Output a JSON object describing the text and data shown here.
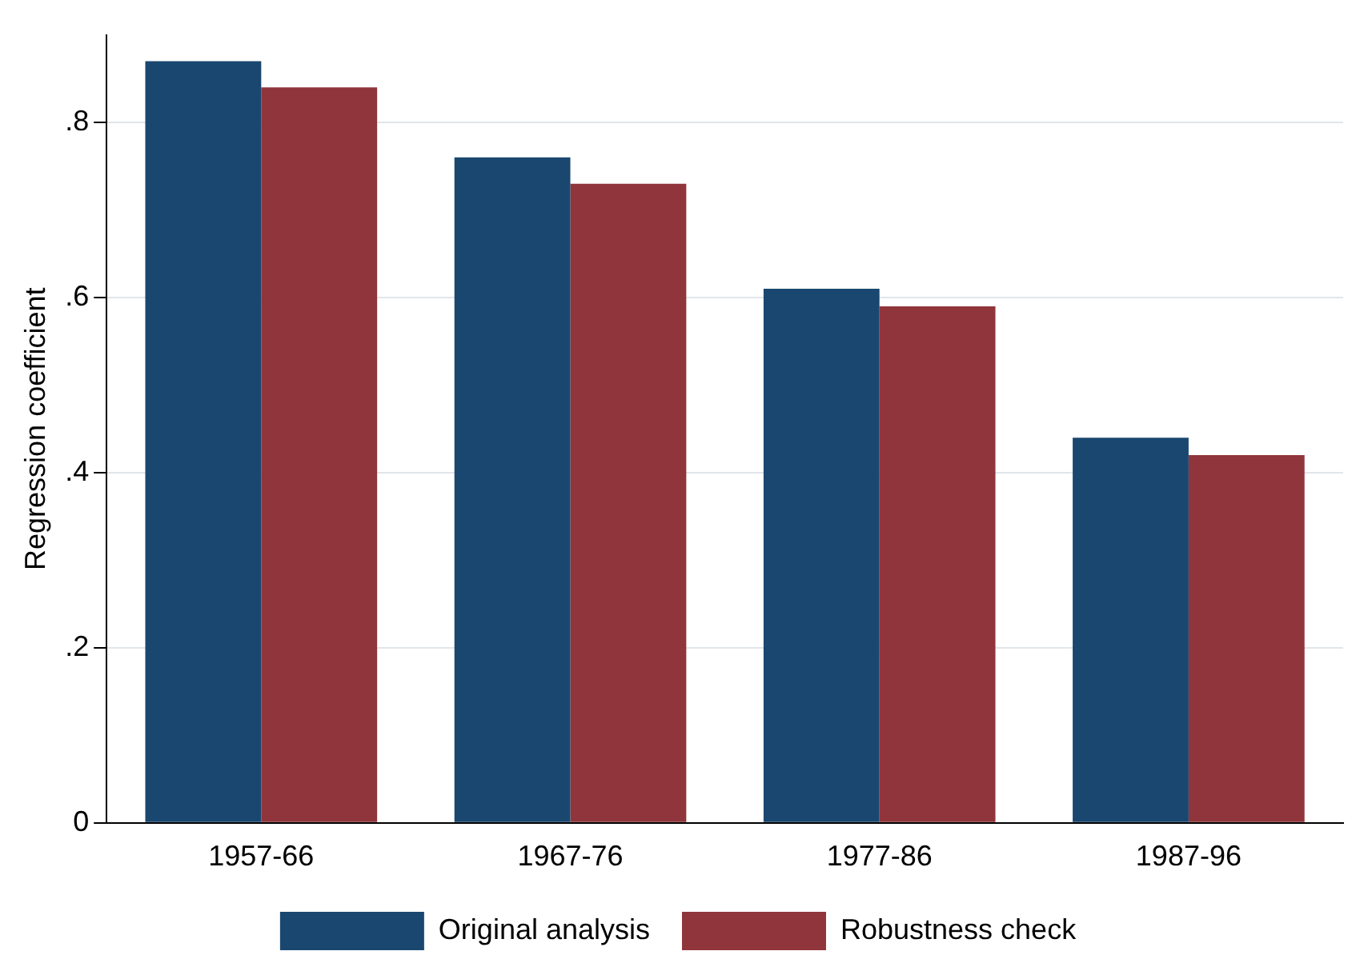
{
  "chart_data": {
    "type": "bar",
    "ylabel": "Regression coefficient",
    "categories": [
      "1957-66",
      "1967-76",
      "1977-86",
      "1987-96"
    ],
    "series": [
      {
        "name": "Original analysis",
        "color": "#1a476f",
        "values": [
          0.87,
          0.76,
          0.61,
          0.44
        ]
      },
      {
        "name": "Robustness check",
        "color": "#90353b",
        "values": [
          0.84,
          0.73,
          0.59,
          0.42
        ]
      }
    ],
    "ylim": [
      0,
      0.9
    ],
    "yticks": [
      {
        "value": 0,
        "label": "0"
      },
      {
        "value": 0.2,
        "label": ".2"
      },
      {
        "value": 0.4,
        "label": ".4"
      },
      {
        "value": 0.6,
        "label": ".6"
      },
      {
        "value": 0.8,
        "label": ".8"
      }
    ],
    "grid": "y",
    "legend": "bottom"
  }
}
